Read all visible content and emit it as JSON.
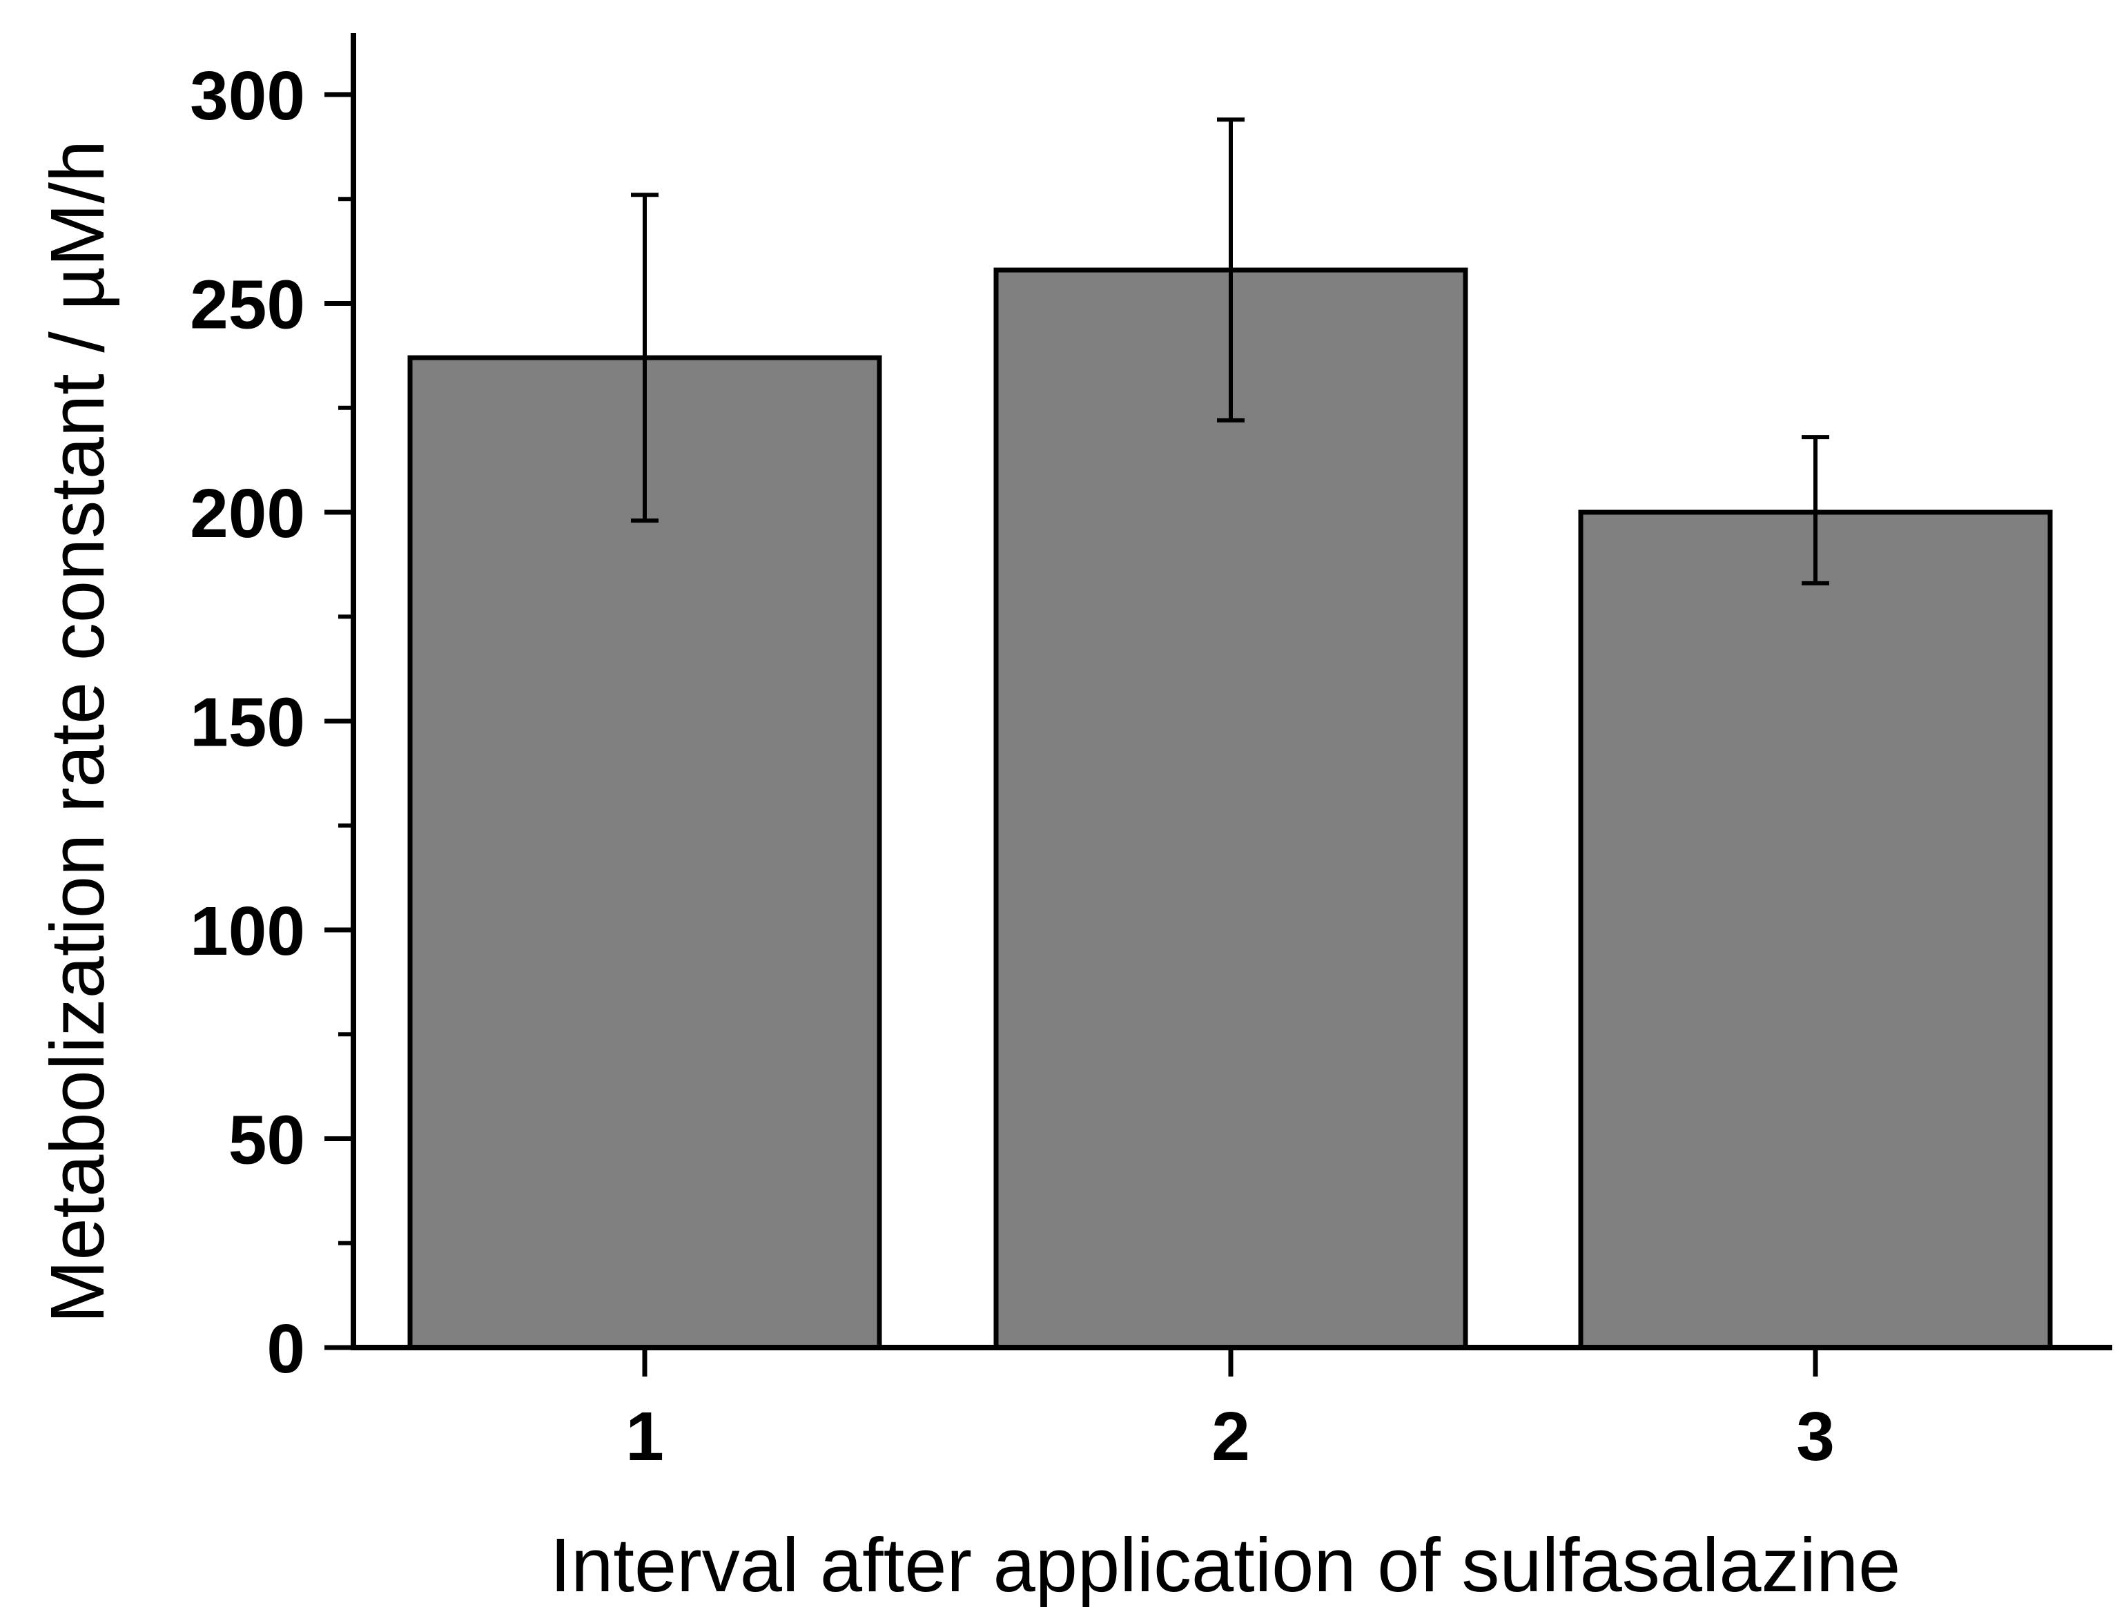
{
  "chart_data": {
    "type": "bar",
    "title": "",
    "xlabel": "Interval after application of sulfasalazine",
    "ylabel": "Metabolization rate constant / µM/h",
    "categories": [
      "1",
      "2",
      "3"
    ],
    "values": [
      237,
      258,
      200
    ],
    "error_bars": [
      {
        "low": 198,
        "high": 276
      },
      {
        "low": 222,
        "high": 294
      },
      {
        "low": 183,
        "high": 218
      }
    ],
    "ylim": [
      0,
      310
    ],
    "yticks": [
      0,
      50,
      100,
      150,
      200,
      250,
      300
    ],
    "ytick_labels": [
      "0",
      "50",
      "100",
      "150",
      "200",
      "250",
      "300"
    ],
    "minor_ytick_step": 25,
    "grid": false,
    "legend": "none",
    "colors": {
      "bar_fill": "#808080",
      "bar_stroke": "#000000",
      "axis": "#000000"
    }
  }
}
